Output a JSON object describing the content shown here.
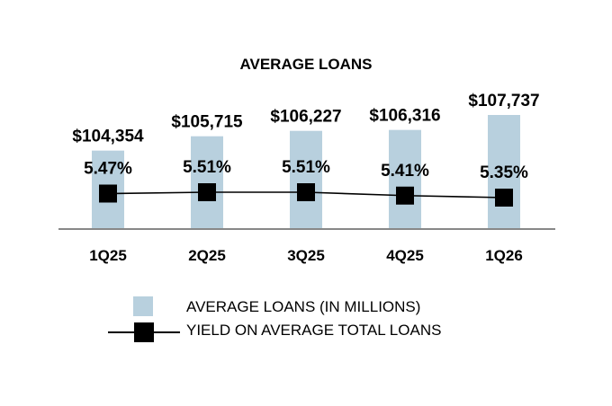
{
  "chart_data": {
    "type": "bar",
    "title": "AVERAGE LOANS",
    "categories": [
      "1Q25",
      "2Q25",
      "3Q25",
      "4Q25",
      "1Q26"
    ],
    "series": [
      {
        "name": "AVERAGE LOANS (IN MILLIONS)",
        "type": "bar",
        "values": [
          104354,
          105715,
          106227,
          106316,
          107737
        ],
        "labels": [
          "$104,354",
          "$105,715",
          "$106,227",
          "$106,316",
          "$107,737"
        ],
        "color": "#b8d0de"
      },
      {
        "name": "YIELD ON AVERAGE TOTAL LOANS",
        "type": "line",
        "values": [
          5.47,
          5.51,
          5.51,
          5.41,
          5.35
        ],
        "labels": [
          "5.47%",
          "5.51%",
          "5.51%",
          "5.41%",
          "5.35%"
        ],
        "color": "#000000"
      }
    ],
    "grid": false,
    "legend_position": "bottom"
  }
}
